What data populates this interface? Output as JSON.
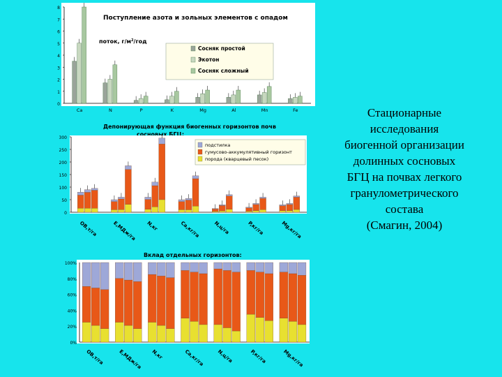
{
  "caption": {
    "lines": [
      "Стационарные",
      "исследования",
      "биогенной организации",
      "долинных сосновых",
      "БГЦ на почвах легкого",
      "гранулометрического",
      "состава",
      "(Смагин, 2004)"
    ]
  },
  "chart_data": [
    {
      "type": "bar",
      "title": "Поступление азота и зольных элементов с опадом",
      "ylabel": "поток, г/м²/год",
      "ylabel_base": "поток, г/м",
      "ylabel_sup": "2",
      "ylabel_tail": "/год",
      "ylim": [
        0,
        8
      ],
      "yticks": [
        0,
        1,
        2,
        3,
        4,
        5,
        6,
        7,
        8
      ],
      "categories": [
        "Ca",
        "N",
        "P",
        "K",
        "Mg",
        "Al",
        "Mn",
        "Fe"
      ],
      "legend_position": "top-right",
      "series": [
        {
          "name": "Сосняк простой",
          "color": "#9aa49a",
          "values": [
            3.5,
            1.7,
            0.25,
            0.3,
            0.5,
            0.5,
            0.7,
            0.4
          ]
        },
        {
          "name": "Экотон",
          "color": "#c8d8c0",
          "values": [
            5.0,
            2.0,
            0.4,
            0.6,
            0.8,
            0.7,
            0.9,
            0.5
          ]
        },
        {
          "name": "Сосняк сложный",
          "color": "#a8c8a0",
          "values": [
            8.0,
            3.2,
            0.6,
            1.0,
            1.1,
            1.1,
            1.4,
            0.6
          ]
        }
      ]
    },
    {
      "type": "bar",
      "title": "Депонирующая функция биогенных горизонтов почв сосновых БГЦ:",
      "title_lines": [
        "Депонирующая функция биогенных горизонтов почв",
        "сосновых БГЦ:"
      ],
      "ylim": [
        0,
        300
      ],
      "yticks": [
        0,
        50,
        100,
        150,
        200,
        250,
        300
      ],
      "categories": [
        "OB,т/га",
        "E,МДж/га",
        "N,кг",
        "Ca,кг/га",
        "N,ц/га",
        "P,кг/га",
        "Mg,кг/га"
      ],
      "legend_position": "top-right",
      "stack_layers": [
        {
          "name": "подстилка",
          "color": "#9ea8d8"
        },
        {
          "name": "гумусово-аккумулятивный горизонт",
          "color": "#e85818"
        },
        {
          "name": "порода (кварцевый песок)",
          "color": "#e8e030"
        }
      ],
      "bars_per_category": 3,
      "totals": [
        [
          80,
          90,
          95
        ],
        [
          50,
          60,
          185
        ],
        [
          60,
          120,
          295
        ],
        [
          50,
          55,
          145
        ],
        [
          15,
          30,
          70
        ],
        [
          20,
          35,
          60
        ],
        [
          30,
          35,
          65
        ]
      ]
    },
    {
      "type": "bar",
      "title": "Вклад отдельных горизонтов:",
      "ylim": [
        0,
        100
      ],
      "yticks": [
        "0%",
        "20%",
        "40%",
        "60%",
        "80%",
        "100%"
      ],
      "categories": [
        "OB,т/га",
        "E,МДж/га",
        "N,кг",
        "Ca,кг/га",
        "N,ц/га",
        "P,кг/га",
        "Mg,кг/га"
      ],
      "stacked_percent": true,
      "bars_per_category": 3
    }
  ]
}
